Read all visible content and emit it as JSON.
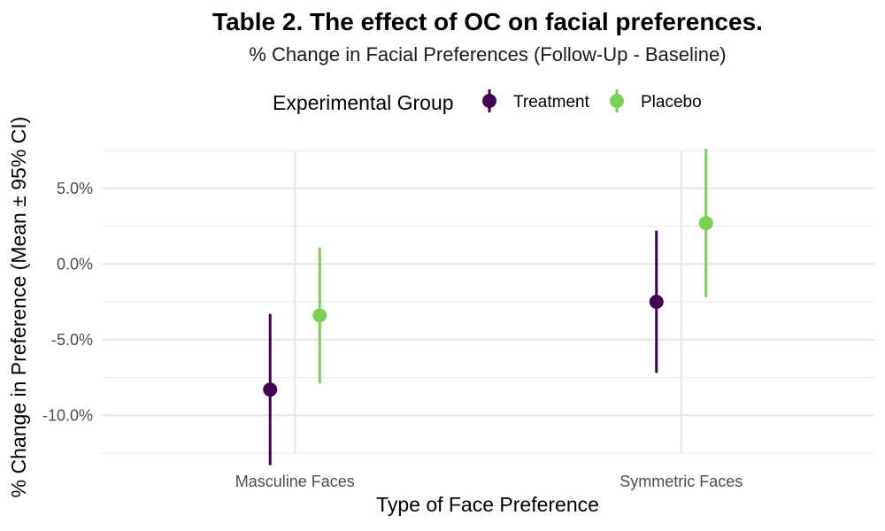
{
  "chart_data": {
    "type": "pointrange",
    "title": "Table 2. The effect of OC on facial preferences.",
    "subtitle": "% Change in Facial Preferences (Follow-Up - Baseline)",
    "xlabel": "Type of Face Preference",
    "ylabel": "% Change in Preference (Mean ± 95% CI)",
    "categories": [
      "Masculine Faces",
      "Symmetric Faces"
    ],
    "legend": {
      "title": "Experimental Group",
      "position": "top"
    },
    "ylim": [
      -12.5,
      7.5
    ],
    "yticks": [
      -10,
      -5,
      0,
      5
    ],
    "ytick_labels": [
      "-10.0%",
      "-5.0%",
      "0.0%",
      "5.0%"
    ],
    "grid": true,
    "series": [
      {
        "name": "Treatment",
        "color": "#440154",
        "mean": [
          -8.3,
          -2.5
        ],
        "lower": [
          -13.3,
          -7.2
        ],
        "upper": [
          -3.3,
          2.2
        ]
      },
      {
        "name": "Placebo",
        "color": "#7AD151",
        "mean": [
          -3.4,
          2.7
        ],
        "lower": [
          -7.9,
          -2.2
        ],
        "upper": [
          1.1,
          7.6
        ]
      }
    ]
  }
}
